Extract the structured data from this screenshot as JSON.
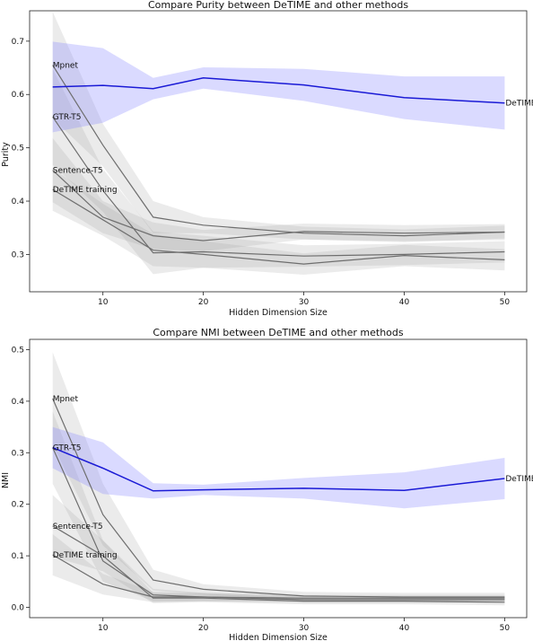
{
  "chart_data": [
    {
      "type": "line",
      "title": "Compare Purity between DeTIME and other methods",
      "xlabel": "Hidden Dimension Size",
      "ylabel": "Purity",
      "x": [
        5,
        10,
        15,
        20,
        30,
        40,
        50
      ],
      "xticks": [
        10,
        20,
        30,
        40,
        50
      ],
      "yticks": [
        0.3,
        0.4,
        0.5,
        0.6,
        0.7
      ],
      "ytick_labels": [
        "0.3",
        "0.4",
        "0.5",
        "0.6",
        "0.7"
      ],
      "xlim": [
        2.7,
        52.2
      ],
      "ylim": [
        0.23,
        0.757
      ],
      "grid": false,
      "series": [
        {
          "name": "DeTIME",
          "color": "#1a1ad6",
          "values": [
            0.614,
            0.617,
            0.611,
            0.631,
            0.618,
            0.594,
            0.584
          ],
          "band": [
            0.085,
            0.07,
            0.02,
            0.02,
            0.03,
            0.04,
            0.05
          ]
        },
        {
          "name": "Mpnet",
          "color": "#6e6e6e",
          "values": [
            0.655,
            0.505,
            0.37,
            0.355,
            0.34,
            0.335,
            0.342
          ],
          "band": [
            0.1,
            0.04,
            0.03,
            0.015,
            0.012,
            0.012,
            0.012
          ]
        },
        {
          "name": "GTR-T5",
          "color": "#6e6e6e",
          "values": [
            0.558,
            0.42,
            0.303,
            0.305,
            0.297,
            0.3,
            0.305
          ],
          "band": [
            0.09,
            0.04,
            0.04,
            0.03,
            0.02,
            0.02,
            0.02
          ]
        },
        {
          "name": "Sentence-T5",
          "color": "#6e6e6e",
          "values": [
            0.458,
            0.37,
            0.335,
            0.326,
            0.343,
            0.34,
            0.342
          ],
          "band": [
            0.06,
            0.03,
            0.025,
            0.02,
            0.015,
            0.015,
            0.015
          ]
        },
        {
          "name": "DeTIME training",
          "color": "#6e6e6e",
          "values": [
            0.422,
            0.365,
            0.308,
            0.3,
            0.282,
            0.298,
            0.29
          ],
          "band": [
            0.04,
            0.03,
            0.03,
            0.025,
            0.02,
            0.02,
            0.02
          ]
        }
      ]
    },
    {
      "type": "line",
      "title": "Compare NMI between DeTIME and other methods",
      "xlabel": "Hidden Dimension Size",
      "ylabel": "NMI",
      "x": [
        5,
        10,
        15,
        20,
        30,
        40,
        50
      ],
      "xticks": [
        10,
        20,
        30,
        40,
        50
      ],
      "yticks": [
        0.0,
        0.1,
        0.2,
        0.3,
        0.4,
        0.5
      ],
      "ytick_labels": [
        "0.0",
        "0.1",
        "0.2",
        "0.3",
        "0.4",
        "0.5"
      ],
      "xlim": [
        2.7,
        52.2
      ],
      "ylim": [
        -0.02,
        0.52
      ],
      "grid": false,
      "series": [
        {
          "name": "DeTIME",
          "color": "#1a1ad6",
          "values": [
            0.31,
            0.27,
            0.226,
            0.228,
            0.231,
            0.227,
            0.25
          ],
          "band": [
            0.04,
            0.05,
            0.015,
            0.01,
            0.02,
            0.035,
            0.04
          ]
        },
        {
          "name": "Mpnet",
          "color": "#6e6e6e",
          "values": [
            0.405,
            0.18,
            0.053,
            0.035,
            0.022,
            0.02,
            0.02
          ],
          "band": [
            0.09,
            0.06,
            0.02,
            0.01,
            0.008,
            0.008,
            0.008
          ]
        },
        {
          "name": "GTR-T5",
          "color": "#6e6e6e",
          "values": [
            0.31,
            0.09,
            0.024,
            0.02,
            0.015,
            0.015,
            0.015
          ],
          "band": [
            0.07,
            0.04,
            0.012,
            0.008,
            0.006,
            0.006,
            0.006
          ]
        },
        {
          "name": "Sentence-T5",
          "color": "#6e6e6e",
          "values": [
            0.158,
            0.1,
            0.018,
            0.018,
            0.012,
            0.012,
            0.01
          ],
          "band": [
            0.06,
            0.03,
            0.01,
            0.008,
            0.006,
            0.006,
            0.006
          ]
        },
        {
          "name": "DeTIME training",
          "color": "#6e6e6e",
          "values": [
            0.102,
            0.045,
            0.02,
            0.02,
            0.018,
            0.018,
            0.018
          ],
          "band": [
            0.04,
            0.02,
            0.01,
            0.008,
            0.006,
            0.006,
            0.006
          ]
        }
      ]
    }
  ]
}
